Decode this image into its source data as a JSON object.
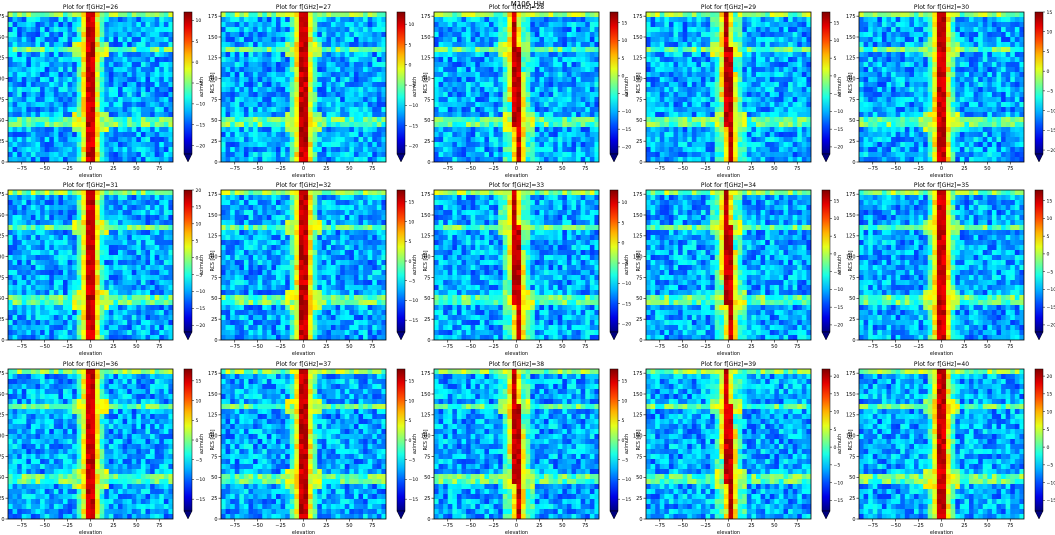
{
  "figure": {
    "suptitle": "M106_HH"
  },
  "chart_data": {
    "type": "heatmap",
    "colormap": "jet",
    "colorbar_extend": "min",
    "xlabel": "elevation",
    "ylabel": "azimuth",
    "colorbar_label": "RCS [dB]",
    "xlim": [
      -90,
      90
    ],
    "ylim": [
      0,
      180
    ],
    "x_ticks": [
      "−75",
      "−50",
      "−25",
      "0",
      "25",
      "50",
      "75"
    ],
    "y_ticks": [
      "0",
      "25",
      "50",
      "75",
      "100",
      "125",
      "150",
      "175"
    ],
    "panels": [
      {
        "title": "Plot for f[GHz]=26",
        "vmin": -22,
        "vmax": 12,
        "cbar_ticks": [
          "10",
          "5",
          "0",
          "−5",
          "−10",
          "−15",
          "−20"
        ]
      },
      {
        "title": "Plot for f[GHz]=27",
        "vmin": -22,
        "vmax": 13,
        "cbar_ticks": [
          "10",
          "5",
          "0",
          "−5",
          "−10",
          "−15",
          "−20"
        ]
      },
      {
        "title": "Plot for f[GHz]=28",
        "vmin": -22,
        "vmax": 18,
        "cbar_ticks": [
          "15",
          "10",
          "5",
          "0",
          "−5",
          "−10",
          "−15",
          "−20"
        ]
      },
      {
        "title": "Plot for f[GHz]=29",
        "vmin": -22,
        "vmax": 18,
        "cbar_ticks": [
          "15",
          "10",
          "5",
          "0",
          "−5",
          "−10",
          "−15",
          "−20"
        ]
      },
      {
        "title": "Plot for f[GHz]=30",
        "vmin": -21,
        "vmax": 15,
        "cbar_ticks": [
          "15",
          "10",
          "5",
          "0",
          "−5",
          "−10",
          "−15",
          "−20"
        ]
      },
      {
        "title": "Plot for f[GHz]=31",
        "vmin": -22,
        "vmax": 20,
        "cbar_ticks": [
          "20",
          "15",
          "10",
          "5",
          "0",
          "−5",
          "−10",
          "−15",
          "−20"
        ]
      },
      {
        "title": "Plot for f[GHz]=32",
        "vmin": -18,
        "vmax": 18,
        "cbar_ticks": [
          "15",
          "10",
          "5",
          "0",
          "−5",
          "−10",
          "−15"
        ]
      },
      {
        "title": "Plot for f[GHz]=33",
        "vmin": -22,
        "vmax": 13,
        "cbar_ticks": [
          "10",
          "5",
          "0",
          "−5",
          "−10",
          "−15",
          "−20"
        ]
      },
      {
        "title": "Plot for f[GHz]=34",
        "vmin": -22,
        "vmax": 18,
        "cbar_ticks": [
          "15",
          "10",
          "5",
          "0",
          "−5",
          "−10",
          "−15",
          "−20"
        ]
      },
      {
        "title": "Plot for f[GHz]=35",
        "vmin": -22,
        "vmax": 18,
        "cbar_ticks": [
          "15",
          "10",
          "5",
          "0",
          "−5",
          "−10",
          "−15",
          "−20"
        ]
      },
      {
        "title": "Plot for f[GHz]=36",
        "vmin": -18,
        "vmax": 18,
        "cbar_ticks": [
          "15",
          "10",
          "5",
          "0",
          "−5",
          "−10",
          "−15"
        ]
      },
      {
        "title": "Plot for f[GHz]=37",
        "vmin": -18,
        "vmax": 18,
        "cbar_ticks": [
          "15",
          "10",
          "5",
          "0",
          "−5",
          "−10",
          "−15"
        ]
      },
      {
        "title": "Plot for f[GHz]=38",
        "vmin": -18,
        "vmax": 18,
        "cbar_ticks": [
          "15",
          "10",
          "5",
          "0",
          "−5",
          "−10",
          "−15"
        ]
      },
      {
        "title": "Plot for f[GHz]=39",
        "vmin": -18,
        "vmax": 22,
        "cbar_ticks": [
          "20",
          "15",
          "10",
          "5",
          "0",
          "−5",
          "−10",
          "−15"
        ]
      },
      {
        "title": "Plot for f[GHz]=40",
        "vmin": -18,
        "vmax": 22,
        "cbar_ticks": [
          "20",
          "15",
          "10",
          "5",
          "0",
          "−5",
          "−10",
          "−15"
        ]
      }
    ]
  }
}
